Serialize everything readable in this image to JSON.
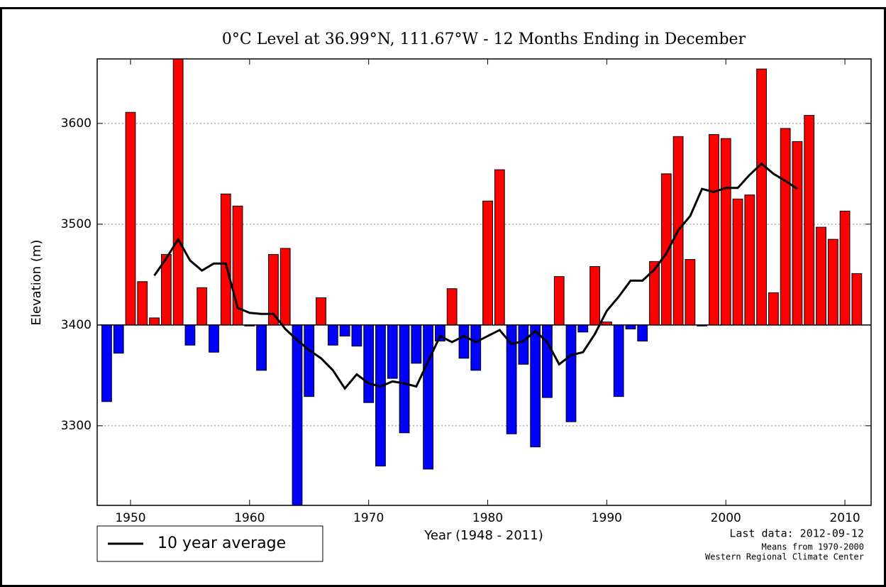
{
  "chart_data": {
    "type": "bar",
    "title": "0°C Level at 36.99°N, 111.67°W - 12 Months Ending in December",
    "x_label": "Year (1948 - 2011)",
    "y_label": "Elevation (m)",
    "notes": [
      "Last data: 2012-09-12",
      "Means from 1970-2000",
      "Western Regional Climate Center"
    ],
    "x": [
      1948,
      1949,
      1950,
      1951,
      1952,
      1953,
      1954,
      1955,
      1956,
      1957,
      1958,
      1959,
      1960,
      1961,
      1962,
      1963,
      1964,
      1965,
      1966,
      1967,
      1968,
      1969,
      1970,
      1971,
      1972,
      1973,
      1974,
      1975,
      1976,
      1977,
      1978,
      1979,
      1980,
      1981,
      1982,
      1983,
      1984,
      1985,
      1986,
      1987,
      1988,
      1989,
      1990,
      1991,
      1992,
      1993,
      1994,
      1995,
      1996,
      1997,
      1998,
      1999,
      2000,
      2001,
      2002,
      2003,
      2004,
      2005,
      2006,
      2007,
      2008,
      2009,
      2010,
      2011
    ],
    "values": [
      3324,
      3372,
      3611,
      3443,
      3407,
      3470,
      3680,
      3380,
      3437,
      3373,
      3530,
      3518,
      3399,
      3355,
      3470,
      3476,
      3210,
      3329,
      3427,
      3380,
      3389,
      3379,
      3323,
      3260,
      3347,
      3293,
      3362,
      3257,
      3384,
      3436,
      3367,
      3355,
      3523,
      3554,
      3292,
      3361,
      3279,
      3328,
      3448,
      3304,
      3393,
      3458,
      3403,
      3329,
      3396,
      3384,
      3463,
      3550,
      3587,
      3465,
      3399,
      3589,
      3585,
      3525,
      3529,
      3654,
      3432,
      3595,
      3582,
      3608,
      3497,
      3485,
      3513,
      3451
    ],
    "baseline": 3400,
    "above_color": "#ff0000",
    "below_color": "#0000ff",
    "line": {
      "name": "10 year average",
      "color": "#000000",
      "x": [
        1952,
        1953,
        1954,
        1955,
        1956,
        1957,
        1958,
        1959,
        1960,
        1961,
        1962,
        1963,
        1964,
        1965,
        1966,
        1967,
        1968,
        1969,
        1970,
        1971,
        1972,
        1973,
        1974,
        1975,
        1976,
        1977,
        1978,
        1979,
        1980,
        1981,
        1982,
        1983,
        1984,
        1985,
        1986,
        1987,
        1988,
        1989,
        1990,
        1991,
        1992,
        1993,
        1994,
        1995,
        1996,
        1997,
        1998,
        1999,
        2000,
        2001,
        2002,
        2003,
        2004,
        2005,
        2006
      ],
      "values": [
        3449,
        3466,
        3485,
        3464,
        3454,
        3461,
        3461,
        3417,
        3412,
        3411,
        3411,
        3396,
        3385,
        3375,
        3367,
        3355,
        3337,
        3351,
        3342,
        3339,
        3344,
        3342,
        3339,
        3364,
        3389,
        3383,
        3389,
        3383,
        3389,
        3395,
        3381,
        3384,
        3394,
        3383,
        3361,
        3370,
        3373,
        3391,
        3414,
        3428,
        3444,
        3444,
        3455,
        3471,
        3494,
        3508,
        3535,
        3532,
        3536,
        3536,
        3549,
        3560,
        3550,
        3543,
        3535
      ]
    },
    "xlim": [
      1947.2,
      2012.2
    ],
    "xticks": [
      1950,
      1960,
      1970,
      1980,
      1990,
      2000,
      2010
    ],
    "ylim": [
      3221,
      3664
    ],
    "yticks": [
      3300,
      3400,
      3500,
      3600
    ],
    "grid": true,
    "legend": "lower-left-outside"
  }
}
